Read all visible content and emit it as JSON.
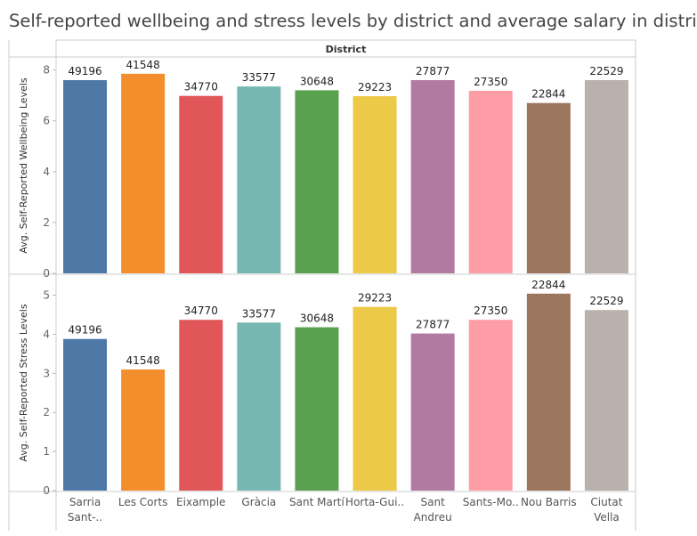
{
  "title": "Self-reported wellbeing and stress levels by district and average salary in district",
  "column_header": "District",
  "chart_data": {
    "type": "bar",
    "categories": [
      "Sarria Sant-..",
      "Les Corts",
      "Eixample",
      "Gràcia",
      "Sant Martí",
      "Horta-Gui..",
      "Sant Andreu",
      "Sants-Mo..",
      "Nou Barris",
      "Ciutat Vella"
    ],
    "category_lines": [
      [
        "Sarria",
        "Sant-.."
      ],
      [
        "Les Corts"
      ],
      [
        "Eixample"
      ],
      [
        "Gràcia"
      ],
      [
        "Sant Martí"
      ],
      [
        "Horta-Gui.."
      ],
      [
        "Sant",
        "Andreu"
      ],
      [
        "Sants-Mo.."
      ],
      [
        "Nou Barris"
      ],
      [
        "Ciutat",
        "Vella"
      ]
    ],
    "salary_labels": [
      "49196",
      "41548",
      "34770",
      "33577",
      "30648",
      "29223",
      "27877",
      "27350",
      "22844",
      "22529"
    ],
    "colors": [
      "#4e79a7",
      "#f28e2b",
      "#e15759",
      "#76b7b2",
      "#59a14f",
      "#edc948",
      "#b07aa1",
      "#ff9da7",
      "#9c755f",
      "#bab0ac"
    ],
    "panels": [
      {
        "ylabel": "Avg. Self-Reported Wellbeing Levels",
        "ylim": [
          0,
          8.3
        ],
        "yticks": [
          0,
          2,
          4,
          6,
          8
        ],
        "values": [
          7.6,
          7.85,
          6.98,
          7.35,
          7.2,
          6.97,
          7.6,
          7.18,
          6.7,
          7.6
        ]
      },
      {
        "ylabel": "Avg. Self-Reported Stress Levels",
        "ylim": [
          0,
          5.4
        ],
        "yticks": [
          0,
          1,
          2,
          3,
          4,
          5
        ],
        "values": [
          3.88,
          3.1,
          4.37,
          4.3,
          4.18,
          4.7,
          4.02,
          4.37,
          5.04,
          4.62
        ]
      }
    ],
    "grid": false,
    "legend": "none"
  }
}
